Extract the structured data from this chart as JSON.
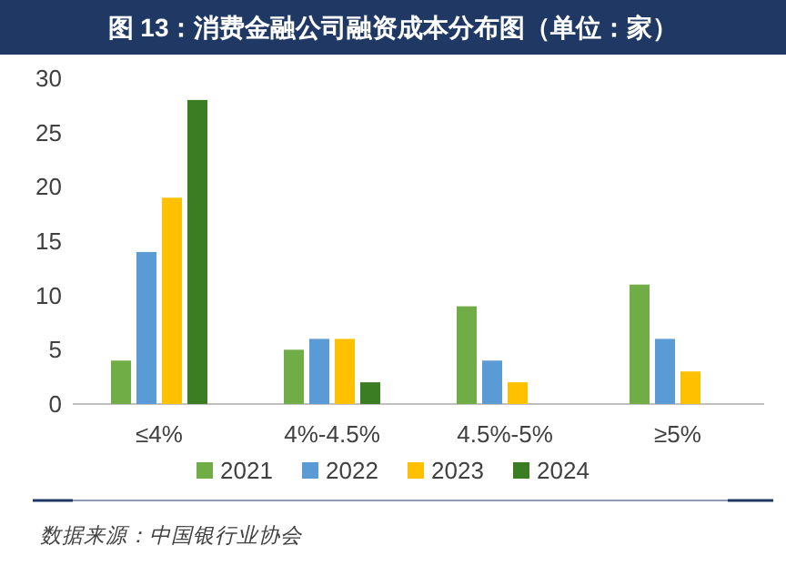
{
  "chart_data": {
    "type": "bar",
    "title": "图 13：消费金融公司融资成本分布图（单位：家）",
    "categories": [
      "≤4%",
      "4%-4.5%",
      "4.5%-5%",
      "≥5%"
    ],
    "series": [
      {
        "name": "2021",
        "color": "#70ad47",
        "values": [
          4,
          5,
          9,
          11
        ]
      },
      {
        "name": "2022",
        "color": "#5b9bd5",
        "values": [
          14,
          6,
          4,
          6
        ]
      },
      {
        "name": "2023",
        "color": "#ffc000",
        "values": [
          19,
          6,
          2,
          3
        ]
      },
      {
        "name": "2024",
        "color": "#3b7d23",
        "values": [
          28,
          2,
          0,
          0
        ]
      }
    ],
    "ylim": [
      0,
      30
    ],
    "yticks": [
      0,
      5,
      10,
      15,
      20,
      25,
      30
    ],
    "legend": "bottom",
    "annotations": [
      "数据来源：中国银行业协会"
    ]
  }
}
